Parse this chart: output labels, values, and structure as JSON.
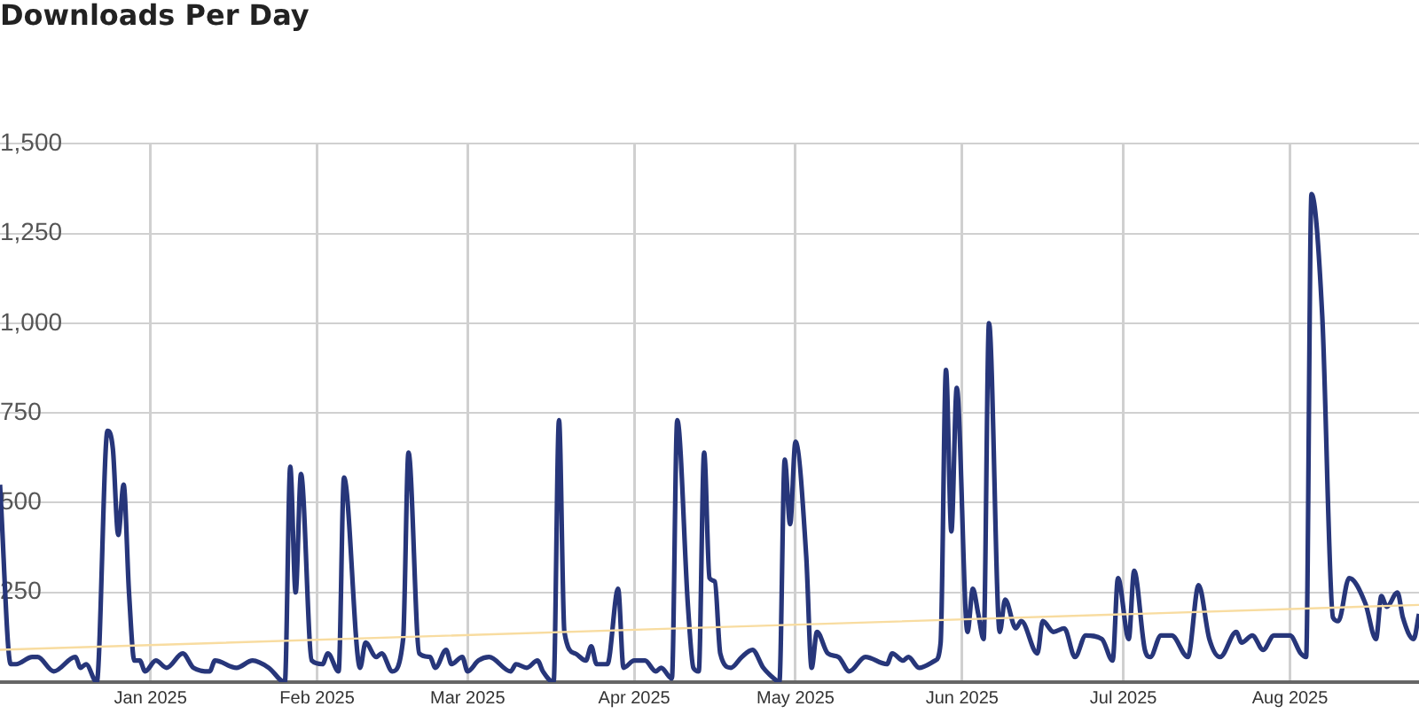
{
  "chart_data": {
    "type": "line",
    "title": "Downloads Per Day",
    "xlim": [
      "2024-12-04",
      "2025-08-25"
    ],
    "xticks": [
      {
        "value": "2025-01-01",
        "label": "Jan 2025"
      },
      {
        "value": "2025-02-01",
        "label": "Feb 2025"
      },
      {
        "value": "2025-03-01",
        "label": "Mar 2025"
      },
      {
        "value": "2025-04-01",
        "label": "Apr 2025"
      },
      {
        "value": "2025-05-01",
        "label": "May 2025"
      },
      {
        "value": "2025-06-01",
        "label": "Jun 2025"
      },
      {
        "value": "2025-07-01",
        "label": "Jul 2025"
      },
      {
        "value": "2025-08-01",
        "label": "Aug 2025"
      }
    ],
    "ylim": [
      0,
      1500
    ],
    "yticks": [
      250,
      500,
      750,
      {
        "value": 1000,
        "label": "1,000"
      },
      {
        "value": 1250,
        "label": "1,250"
      },
      {
        "value": 1500,
        "label": "1,500"
      }
    ],
    "grid": true,
    "series": [
      {
        "color": "#27367a",
        "x": [
          "2024-12-04",
          "2024-12-06",
          "2024-12-07",
          "2024-12-10",
          "2024-12-11",
          "2024-12-14",
          "2024-12-18",
          "2024-12-19",
          "2024-12-20",
          "2024-12-22",
          "2024-12-24",
          "2024-12-25",
          "2024-12-26",
          "2024-12-27",
          "2024-12-28",
          "2024-12-29",
          "2024-12-30",
          "2024-12-31",
          "2025-01-02",
          "2025-01-04",
          "2025-01-07",
          "2025-01-09",
          "2025-01-12",
          "2025-01-13",
          "2025-01-17",
          "2025-01-20",
          "2025-01-23",
          "2025-01-26",
          "2025-01-27",
          "2025-01-28",
          "2025-01-29",
          "2025-01-31",
          "2025-02-02",
          "2025-02-03",
          "2025-02-05",
          "2025-02-06",
          "2025-02-09",
          "2025-02-10",
          "2025-02-12",
          "2025-02-13",
          "2025-02-15",
          "2025-02-17",
          "2025-02-18",
          "2025-02-20",
          "2025-02-22",
          "2025-02-23",
          "2025-02-25",
          "2025-02-26",
          "2025-02-28",
          "2025-03-01",
          "2025-03-03",
          "2025-03-05",
          "2025-03-09",
          "2025-03-10",
          "2025-03-12",
          "2025-03-14",
          "2025-03-15",
          "2025-03-17",
          "2025-03-18",
          "2025-03-19",
          "2025-03-21",
          "2025-03-23",
          "2025-03-24",
          "2025-03-25",
          "2025-03-27",
          "2025-03-29",
          "2025-03-30",
          "2025-04-01",
          "2025-04-03",
          "2025-04-05",
          "2025-04-06",
          "2025-04-08",
          "2025-04-09",
          "2025-04-11",
          "2025-04-12",
          "2025-04-13",
          "2025-04-14",
          "2025-04-15",
          "2025-04-16",
          "2025-04-17",
          "2025-04-19",
          "2025-04-21",
          "2025-04-23",
          "2025-04-25",
          "2025-04-27",
          "2025-04-28",
          "2025-04-29",
          "2025-04-30",
          "2025-05-01",
          "2025-05-03",
          "2025-05-04",
          "2025-05-05",
          "2025-05-07",
          "2025-05-09",
          "2025-05-11",
          "2025-05-14",
          "2025-05-18",
          "2025-05-19",
          "2025-05-21",
          "2025-05-22",
          "2025-05-24",
          "2025-05-27",
          "2025-05-28",
          "2025-05-29",
          "2025-05-30",
          "2025-05-31",
          "2025-06-02",
          "2025-06-03",
          "2025-06-04",
          "2025-06-05",
          "2025-06-06",
          "2025-06-08",
          "2025-06-09",
          "2025-06-11",
          "2025-06-12",
          "2025-06-15",
          "2025-06-16",
          "2025-06-18",
          "2025-06-20",
          "2025-06-22",
          "2025-06-24",
          "2025-06-27",
          "2025-06-29",
          "2025-06-30",
          "2025-07-02",
          "2025-07-03",
          "2025-07-05",
          "2025-07-06",
          "2025-07-08",
          "2025-07-10",
          "2025-07-13",
          "2025-07-15",
          "2025-07-17",
          "2025-07-19",
          "2025-07-22",
          "2025-07-23",
          "2025-07-25",
          "2025-07-27",
          "2025-07-29",
          "2025-08-01",
          "2025-08-03",
          "2025-08-04",
          "2025-08-05",
          "2025-08-07",
          "2025-08-09",
          "2025-08-10",
          "2025-08-12",
          "2025-08-15",
          "2025-08-17",
          "2025-08-18",
          "2025-08-19",
          "2025-08-21",
          "2025-08-22",
          "2025-08-24",
          "2025-08-25"
        ],
        "values": [
          550,
          50,
          50,
          70,
          70,
          30,
          70,
          40,
          50,
          0,
          700,
          650,
          410,
          550,
          250,
          60,
          60,
          30,
          60,
          40,
          80,
          40,
          30,
          60,
          40,
          60,
          40,
          0,
          600,
          250,
          580,
          60,
          50,
          80,
          30,
          570,
          40,
          110,
          70,
          80,
          30,
          120,
          640,
          80,
          70,
          40,
          90,
          50,
          70,
          30,
          60,
          70,
          30,
          50,
          40,
          60,
          30,
          0,
          730,
          140,
          80,
          60,
          100,
          50,
          50,
          260,
          40,
          60,
          60,
          30,
          40,
          10,
          730,
          210,
          40,
          30,
          640,
          290,
          280,
          80,
          40,
          70,
          90,
          40,
          10,
          0,
          620,
          440,
          670,
          350,
          40,
          140,
          80,
          70,
          30,
          70,
          50,
          80,
          60,
          70,
          40,
          60,
          110,
          870,
          420,
          820,
          140,
          260,
          190,
          120,
          1000,
          140,
          230,
          150,
          170,
          80,
          170,
          140,
          150,
          70,
          130,
          120,
          60,
          290,
          120,
          310,
          90,
          70,
          130,
          130,
          70,
          270,
          120,
          70,
          140,
          110,
          130,
          90,
          130,
          130,
          80,
          70,
          1360,
          1020,
          180,
          170,
          290,
          220,
          120,
          240,
          210,
          250,
          180,
          120,
          190
        ]
      },
      {
        "type": "line",
        "color": "#f8dca0",
        "x": [
          "2024-12-04",
          "2025-08-25"
        ],
        "values": [
          90,
          215
        ]
      }
    ]
  }
}
